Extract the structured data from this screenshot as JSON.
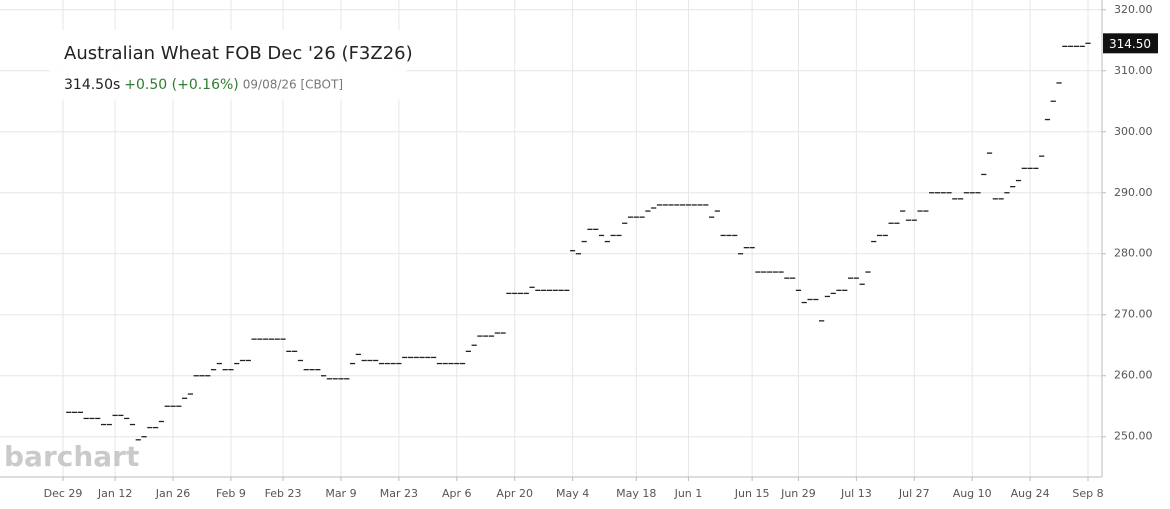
{
  "chart_data": {
    "type": "ohlc",
    "title": "Australian Wheat FOB Dec '26 (F3Z26)",
    "last": "314.50s",
    "change": "+0.50 (+0.16%)",
    "date_info": "09/08/26 [CBOT]",
    "watermark": "barchart",
    "price_tag": {
      "value": 314.5,
      "label": "314.50"
    },
    "color": "#222222",
    "grid": true,
    "categories": [
      "Dec 29",
      null,
      null,
      null,
      null,
      null,
      null,
      null,
      null,
      "Jan 12",
      null,
      null,
      null,
      null,
      null,
      null,
      null,
      null,
      null,
      "Jan 26",
      null,
      null,
      null,
      null,
      null,
      null,
      null,
      null,
      null,
      "Feb 9",
      null,
      null,
      null,
      null,
      null,
      null,
      null,
      null,
      "Feb 23",
      null,
      null,
      null,
      null,
      null,
      null,
      null,
      null,
      null,
      "Mar 9",
      null,
      null,
      null,
      null,
      null,
      null,
      null,
      null,
      null,
      "Mar 23",
      null,
      null,
      null,
      null,
      null,
      null,
      null,
      null,
      null,
      "Apr 6",
      null,
      null,
      null,
      null,
      null,
      null,
      null,
      null,
      null,
      "Apr 20",
      null,
      null,
      null,
      null,
      null,
      null,
      null,
      null,
      null,
      "May 4",
      null,
      null,
      null,
      null,
      null,
      null,
      null,
      null,
      null,
      null,
      "May 18",
      null,
      null,
      null,
      null,
      null,
      null,
      null,
      null,
      "Jun 1",
      null,
      null,
      null,
      null,
      null,
      null,
      null,
      null,
      null,
      null,
      "Jun 15",
      null,
      null,
      null,
      null,
      null,
      null,
      null,
      "Jun 29",
      null,
      null,
      null,
      null,
      null,
      null,
      null,
      null,
      null,
      "Jul 13",
      null,
      null,
      null,
      null,
      null,
      null,
      null,
      null,
      null,
      "Jul 27",
      null,
      null,
      null,
      null,
      null,
      null,
      null,
      null,
      null,
      "Aug 10",
      null,
      null,
      null,
      null,
      null,
      null,
      null,
      null,
      null,
      "Aug 24",
      null,
      null,
      null,
      null,
      null,
      null,
      null,
      null,
      null,
      "Sep 8"
    ],
    "values": [
      null,
      254,
      254,
      254,
      253,
      253,
      253,
      252,
      252,
      253.5,
      253.5,
      253,
      252,
      249.5,
      250,
      251.5,
      251.5,
      252.5,
      255,
      255,
      255,
      256.3,
      257,
      260,
      260,
      260,
      261,
      262,
      261,
      261,
      262,
      262.5,
      262.5,
      266,
      266,
      266,
      266,
      266,
      266,
      264,
      264,
      262.5,
      261,
      261,
      261,
      260,
      259.5,
      259.5,
      259.5,
      259.5,
      262,
      263.5,
      262.5,
      262.5,
      262.5,
      262,
      262,
      262,
      262,
      263,
      263,
      263,
      263,
      263,
      263,
      262,
      262,
      262,
      262,
      262,
      264,
      265,
      266.5,
      266.5,
      266.5,
      267,
      267,
      273.5,
      273.5,
      273.5,
      273.5,
      274.5,
      274,
      274,
      274,
      274,
      274,
      274,
      280.5,
      280,
      282,
      284,
      284,
      283,
      282,
      283,
      283,
      285,
      286,
      286,
      286,
      287,
      287.5,
      288,
      288,
      288,
      288,
      288,
      288,
      288,
      288,
      288,
      286,
      287,
      283,
      283,
      283,
      280,
      281,
      281,
      277,
      277,
      277,
      277,
      277,
      276,
      276,
      274,
      272,
      272.5,
      272.5,
      269,
      273,
      273.5,
      274,
      274,
      276,
      276,
      275,
      277,
      282,
      283,
      283,
      285,
      285,
      287,
      285.5,
      285.5,
      287,
      287,
      290,
      290,
      290,
      290,
      289,
      289,
      290,
      290,
      290,
      293,
      296.5,
      289,
      289,
      290,
      291,
      292,
      294,
      294,
      294,
      296,
      302,
      305,
      308,
      314,
      314,
      314,
      314,
      314.5
    ],
    "ylim": [
      243.4,
      321.6
    ],
    "yticks": [
      {
        "value": 250,
        "label": "250.00"
      },
      {
        "value": 260,
        "label": "260.00"
      },
      {
        "value": 270,
        "label": "270.00"
      },
      {
        "value": 280,
        "label": "280.00"
      },
      {
        "value": 290,
        "label": "290.00"
      },
      {
        "value": 300,
        "label": "300.00"
      },
      {
        "value": 310,
        "label": "310.00"
      },
      {
        "value": 320,
        "label": "320.00"
      }
    ]
  }
}
